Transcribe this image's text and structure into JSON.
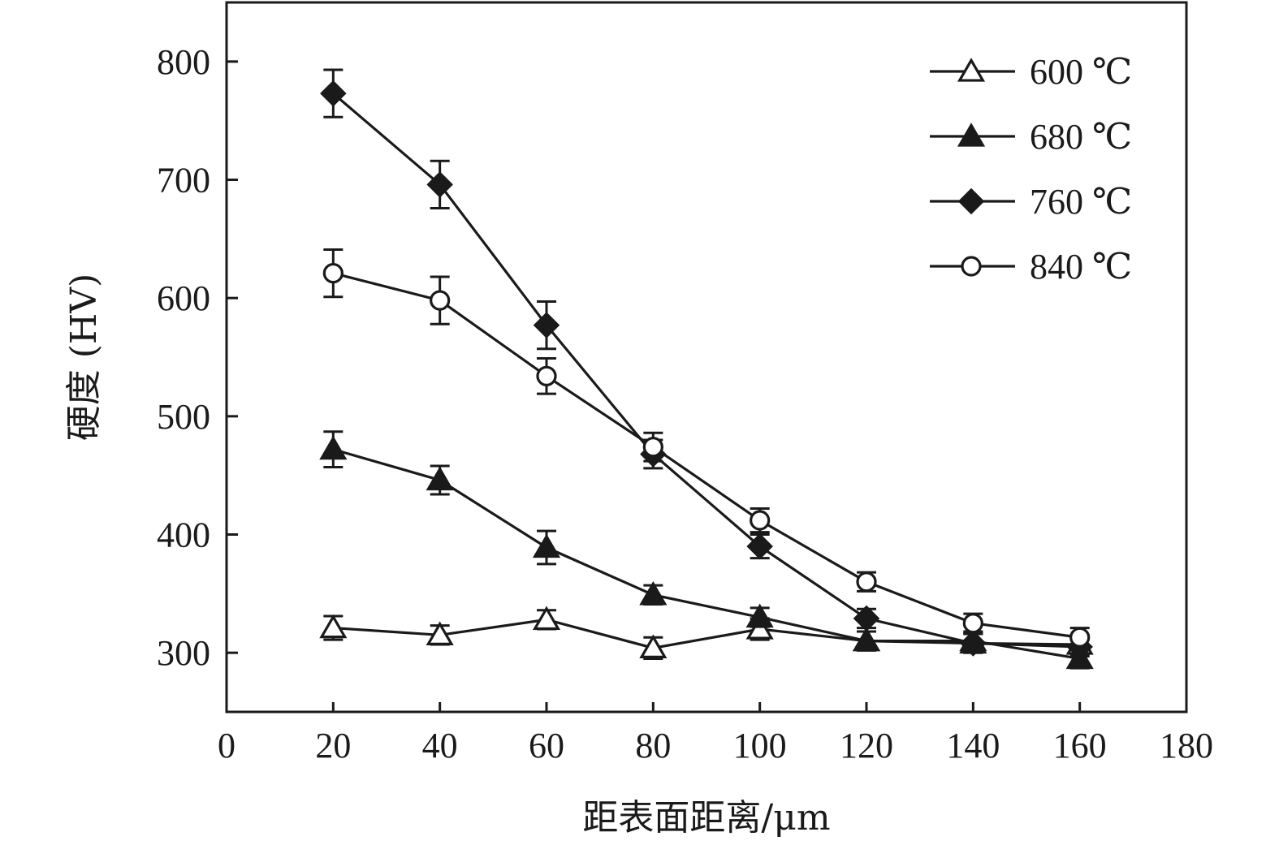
{
  "chart_data": {
    "type": "line",
    "xlabel": "距表面距离/μm",
    "ylabel": "硬度 (HV)",
    "xlim": [
      0,
      180
    ],
    "ylim": [
      250,
      850
    ],
    "xticks": [
      0,
      20,
      40,
      60,
      80,
      100,
      120,
      140,
      160,
      180
    ],
    "yticks": [
      300,
      400,
      500,
      600,
      700,
      800
    ],
    "grid": false,
    "legend_position": "top-right",
    "x": [
      20,
      40,
      60,
      80,
      100,
      120,
      140,
      160
    ],
    "series": [
      {
        "name": "600 ℃",
        "marker": "triangle-open",
        "values": [
          321,
          315,
          328,
          304,
          320,
          310,
          308,
          307
        ],
        "errors": [
          10,
          8,
          8,
          9,
          9,
          8,
          8,
          8
        ]
      },
      {
        "name": "680 ℃",
        "marker": "triangle-filled",
        "values": [
          472,
          446,
          389,
          349,
          330,
          310,
          310,
          295
        ],
        "errors": [
          15,
          12,
          14,
          8,
          8,
          8,
          8,
          8
        ]
      },
      {
        "name": "760 ℃",
        "marker": "diamond-filled",
        "values": [
          773,
          696,
          577,
          468,
          390,
          329,
          308,
          305
        ],
        "errors": [
          20,
          20,
          20,
          12,
          10,
          8,
          8,
          8
        ]
      },
      {
        "name": "840 ℃",
        "marker": "circle-open",
        "values": [
          621,
          598,
          534,
          474,
          412,
          360,
          325,
          313
        ],
        "errors": [
          20,
          20,
          15,
          12,
          10,
          8,
          8,
          8
        ]
      }
    ]
  }
}
